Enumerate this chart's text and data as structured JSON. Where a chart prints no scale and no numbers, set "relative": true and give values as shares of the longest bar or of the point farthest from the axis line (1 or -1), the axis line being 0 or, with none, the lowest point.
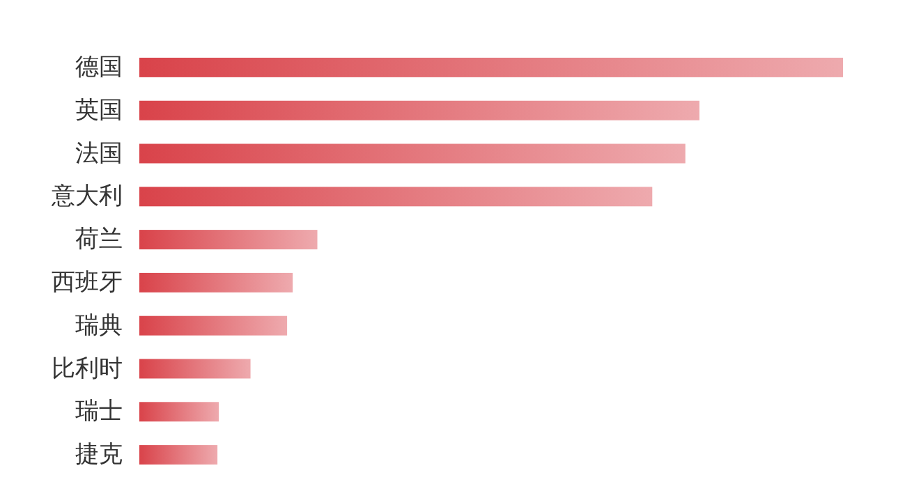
{
  "chart_data": {
    "type": "bar",
    "orientation": "horizontal",
    "relative": true,
    "categories": [
      "德国",
      "英国",
      "法国",
      "意大利",
      "荷兰",
      "西班牙",
      "瑞典",
      "比利时",
      "瑞士",
      "捷克"
    ],
    "values": [
      1,
      0.796,
      0.776,
      0.729,
      0.253,
      0.218,
      0.21,
      0.158,
      0.113,
      0.111
    ],
    "color": "#d9434a"
  }
}
